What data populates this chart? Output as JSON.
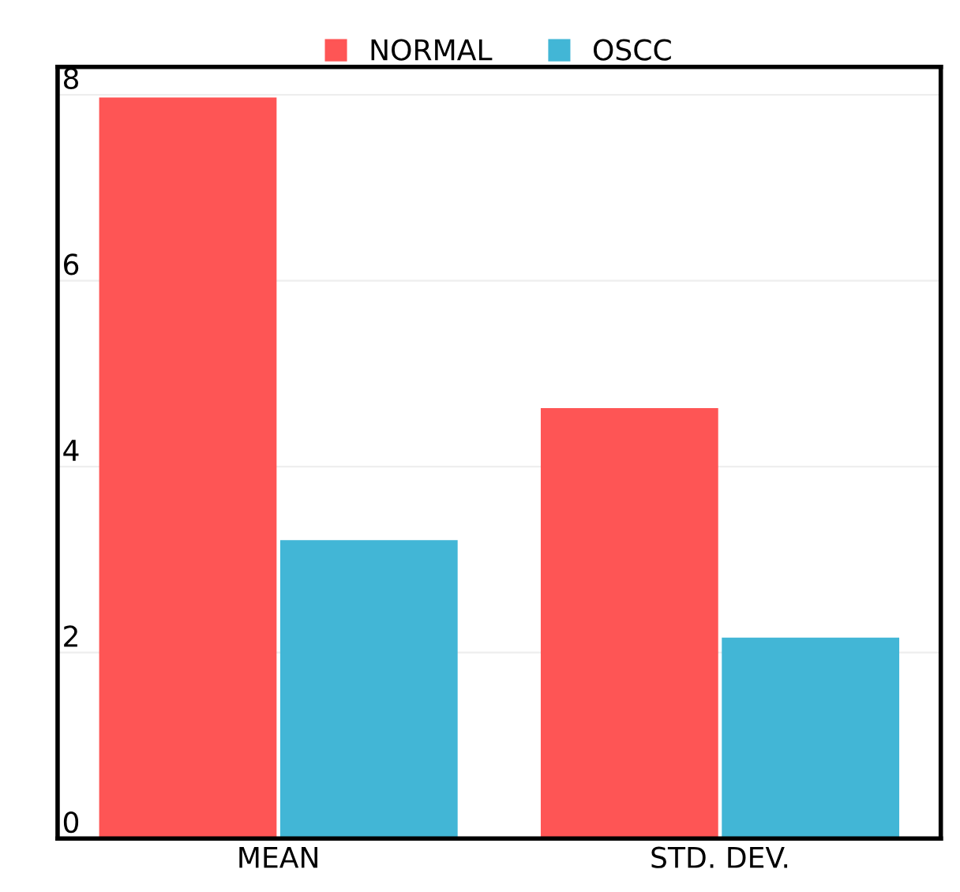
{
  "chart_data": {
    "type": "bar",
    "categories": [
      "MEAN",
      "STD. DEV."
    ],
    "series": [
      {
        "name": "NORMAL",
        "color": "#fe5555",
        "values": [
          7.97,
          4.63
        ]
      },
      {
        "name": "OSCC",
        "color": "#42b6d6",
        "values": [
          3.21,
          2.16
        ]
      }
    ],
    "ylim": [
      0,
      8.3
    ],
    "yticks": [
      0,
      2,
      4,
      6,
      8
    ],
    "grid": "y",
    "legend": "top"
  }
}
